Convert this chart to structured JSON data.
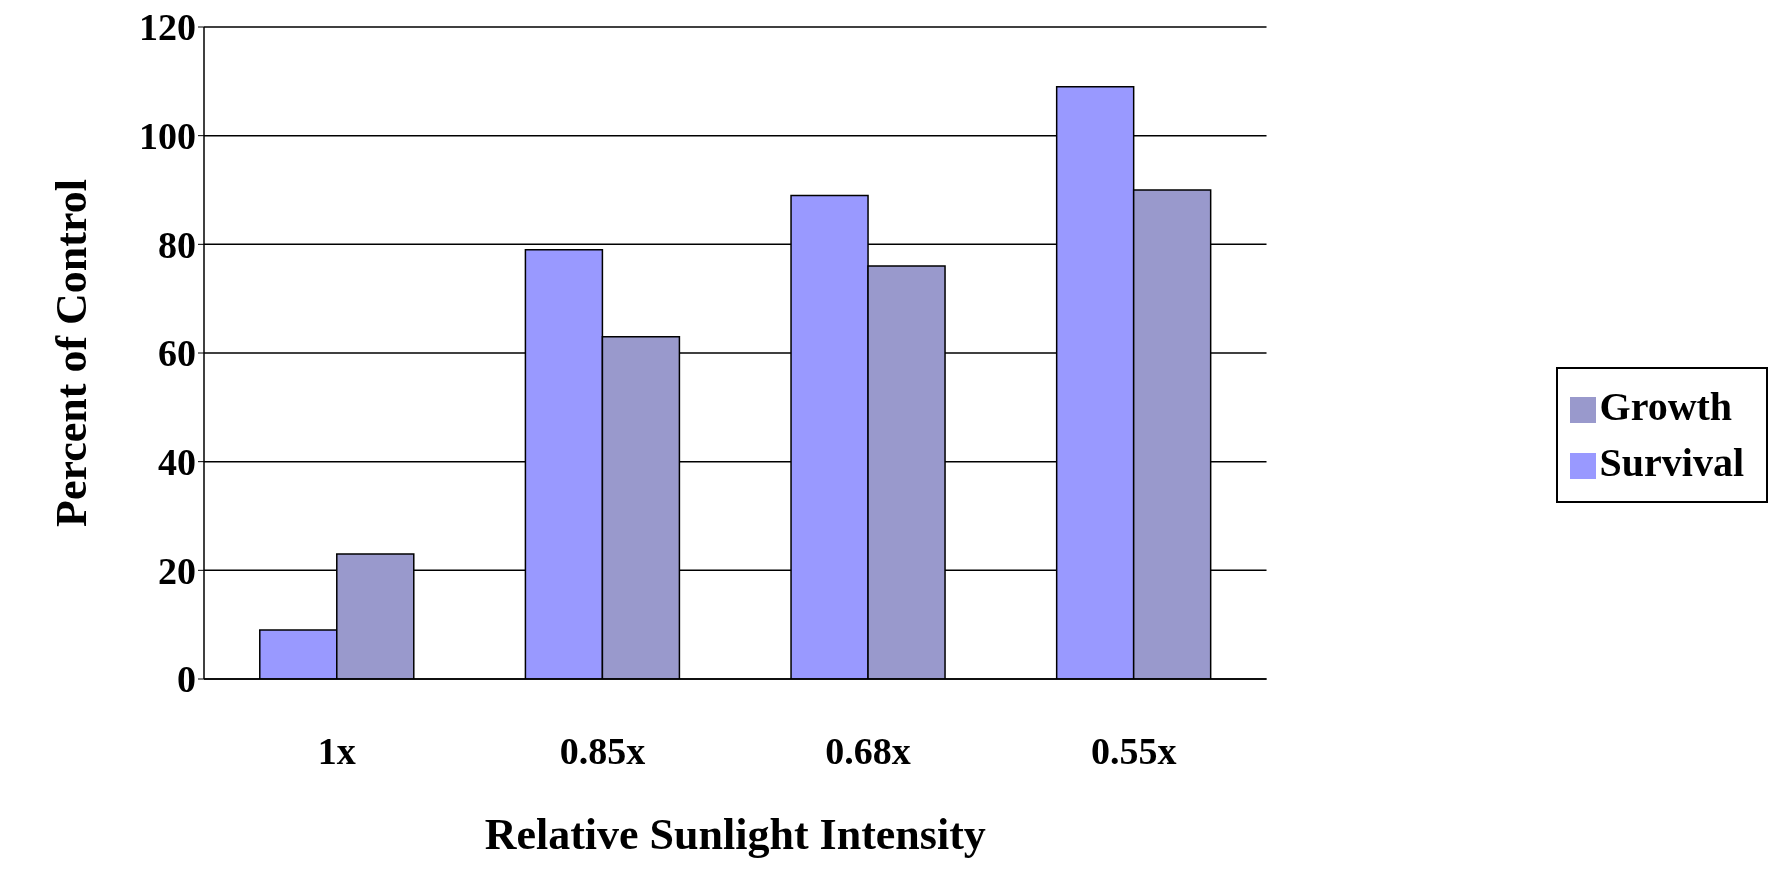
{
  "chart_data": {
    "type": "bar",
    "xlabel": "Relative Sunlight Intensity",
    "ylabel": "Percent of Control",
    "categories": [
      "1x",
      "0.85x",
      "0.68x",
      "0.55x"
    ],
    "series": [
      {
        "name": "Survival",
        "color": "#9999ff",
        "values": [
          9,
          79,
          89,
          109
        ]
      },
      {
        "name": "Growth",
        "color": "#9999cc",
        "values": [
          23,
          63,
          76,
          90
        ]
      }
    ],
    "ylim": [
      0,
      120
    ],
    "yticks": [
      0,
      20,
      40,
      60,
      80,
      100,
      120
    ],
    "grid": "y",
    "legend": "right"
  }
}
